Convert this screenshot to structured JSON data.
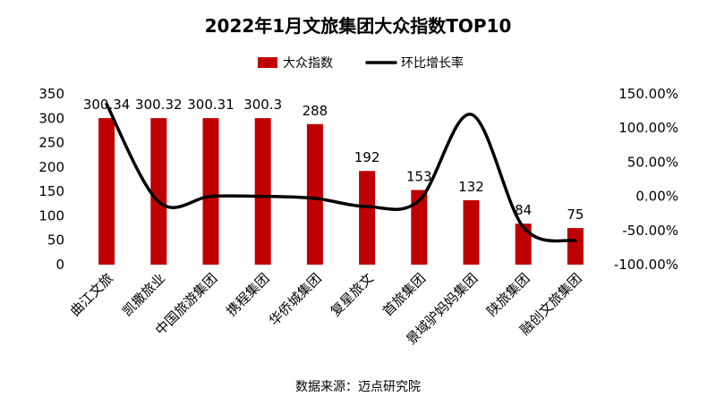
{
  "chart_data": {
    "type": "bar",
    "title": "2022年1月文旅集团大众指数TOP10",
    "categories": [
      "曲江文旅",
      "凯撒旅业",
      "中国旅游集团",
      "携程集团",
      "华侨城集团",
      "复星旅文",
      "首旅集团",
      "景域驴妈妈集团",
      "陕旅集团",
      "融创文旅集团"
    ],
    "series": [
      {
        "name": "大众指数",
        "type": "bar",
        "axis": "left",
        "values": [
          300.34,
          300.32,
          300.31,
          300.3,
          288,
          192,
          153,
          132,
          84,
          75
        ],
        "labels": [
          "300.34",
          "300.32",
          "300.31",
          "300.3",
          "288",
          "192",
          "153",
          "132",
          "84",
          "75"
        ],
        "color": "#C00000"
      },
      {
        "name": "环比增长率",
        "type": "line",
        "axis": "right",
        "values": [
          135,
          -8,
          0,
          0,
          -3,
          -15,
          -6,
          120,
          -45,
          -65
        ],
        "color": "#000000"
      }
    ],
    "y_left": {
      "min": 0,
      "max": 350,
      "ticks": [
        "0",
        "50",
        "100",
        "150",
        "200",
        "250",
        "300",
        "350"
      ]
    },
    "y_right": {
      "min": -100,
      "max": 150,
      "unit": "%",
      "ticks": [
        "-100.00%",
        "-50.00%",
        "0.00%",
        "50.00%",
        "100.00%",
        "150.00%"
      ]
    },
    "legend": {
      "position": "top"
    },
    "grid": false,
    "source": "数据来源：迈点研究院"
  }
}
